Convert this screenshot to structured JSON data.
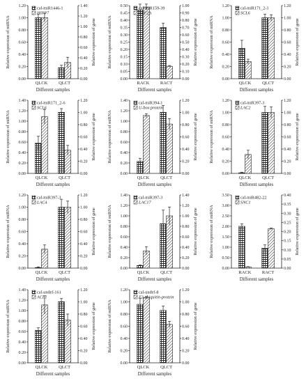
{
  "figure": {
    "colors": {
      "axis": "#222222",
      "bar_fill": "#ffffff",
      "bar_stroke": "#222222",
      "error_bar": "#222222"
    },
    "patterns": [
      "checker",
      "diagonal-hatch"
    ]
  },
  "chart_data": [
    {
      "type": "bar",
      "categories": [
        "QLCK",
        "QLCT"
      ],
      "xlabel": "Different samples",
      "ylabel_left": "Relative expression of miRNA",
      "ylabel_right": "Relative expression of gene",
      "left_ticks": [
        "0.00",
        "0.20",
        "0.40",
        "0.60",
        "0.80",
        "1.00",
        "1.20"
      ],
      "right_ticks": [
        "0.00",
        "0.20",
        "0.40",
        "0.60",
        "0.80",
        "1.00",
        "1.20",
        "1.40"
      ],
      "ylim_left": [
        0,
        1.2
      ],
      "ylim_right": [
        0,
        1.4
      ],
      "series": [
        {
          "name": "cal-miR1446-1",
          "pattern": "checker",
          "axis": "left",
          "values": [
            1.0,
            0.18
          ],
          "errors": [
            0.06,
            0.04
          ]
        },
        {
          "name": "HIPP7",
          "pattern": "diagonal-hatch",
          "axis": "right",
          "values": [
            1.17,
            0.31
          ],
          "errors": [
            0.08,
            0.1
          ]
        }
      ]
    },
    {
      "type": "bar",
      "categories": [
        "RACK",
        "RACT"
      ],
      "xlabel": "Different samples",
      "ylabel_left": "Relative expression of miRNA",
      "ylabel_right": "Relative expression of gene",
      "left_ticks": [
        "0.00",
        "0.05",
        "0.10",
        "0.15",
        "0.20",
        "0.25",
        "0.30",
        "0.35",
        "0.40",
        "0.45",
        "0.50"
      ],
      "right_ticks": [
        "0.00",
        "0.10",
        "0.20",
        "0.30",
        "0.40",
        "0.50",
        "0.60",
        "0.70",
        "0.80",
        "0.90",
        "1.00"
      ],
      "ylim_left": [
        0,
        0.5
      ],
      "ylim_right": [
        0,
        1.0
      ],
      "series": [
        {
          "name": "cal-miR159-39",
          "pattern": "checker",
          "axis": "left",
          "values": [
            0.47,
            0.35
          ],
          "errors": [
            0.04,
            0.03
          ]
        },
        {
          "name": "ARF2A",
          "pattern": "diagonal-hatch",
          "axis": "right",
          "values": [
            0.98,
            0.17
          ],
          "errors": [
            0.04,
            0.01
          ]
        }
      ]
    },
    {
      "type": "bar",
      "categories": [
        "QLCK",
        "QLCT"
      ],
      "xlabel": "Different samples",
      "ylabel_left": "Relative expression of miRNA",
      "ylabel_right": "Relative expression of gene",
      "left_ticks": [
        "0.00",
        "0.20",
        "0.40",
        "0.60",
        "0.80",
        "1.00",
        "1.20"
      ],
      "right_ticks": [
        "0.00",
        "0.20",
        "0.40",
        "0.60",
        "0.80",
        "1.00",
        "1.20"
      ],
      "ylim_left": [
        0,
        1.2
      ],
      "ylim_right": [
        0,
        1.2
      ],
      "series": [
        {
          "name": "cal-miR171_2-1",
          "pattern": "checker",
          "axis": "left",
          "values": [
            0.5,
            1.0
          ],
          "errors": [
            0.13,
            0.06
          ]
        },
        {
          "name": "SCL6",
          "pattern": "diagonal-hatch",
          "axis": "right",
          "values": [
            0.28,
            1.0
          ],
          "errors": [
            0.04,
            0.05
          ]
        }
      ]
    },
    {
      "type": "bar",
      "categories": [
        "QLCK",
        "QLCT"
      ],
      "xlabel": "Different samples",
      "ylabel_left": "Relative expression of miRNA",
      "ylabel_right": "Relative expression of gene",
      "left_ticks": [
        "0.00",
        "0.20",
        "0.40",
        "0.60",
        "0.80",
        "1.00",
        "1.20",
        "1.40"
      ],
      "right_ticks": [
        "0.00",
        "0.20",
        "0.40",
        "0.60",
        "0.80",
        "1.00",
        "1.20"
      ],
      "ylim_left": [
        0,
        1.4
      ],
      "ylim_right": [
        0,
        1.2
      ],
      "series": [
        {
          "name": "cal-miR171_2-6",
          "pattern": "checker",
          "axis": "left",
          "values": [
            0.58,
            1.17
          ],
          "errors": [
            0.13,
            0.07
          ]
        },
        {
          "name": "SCL6",
          "pattern": "diagonal-hatch",
          "axis": "right",
          "values": [
            0.93,
            0.38
          ],
          "errors": [
            0.12,
            0.08
          ]
        }
      ]
    },
    {
      "type": "bar",
      "categories": [
        "QLCK",
        "QLCT"
      ],
      "xlabel": "Different samples",
      "ylabel_left": "Relative expression of miRNA",
      "ylabel_right": "Relative expression of gene",
      "left_ticks": [
        "0.00",
        "0.20",
        "0.40",
        "0.60",
        "0.80",
        "1.00",
        "1.20",
        "1.40"
      ],
      "right_ticks": [
        "0.00",
        "0.20",
        "0.40",
        "0.60",
        "0.80",
        "1.00",
        "1.20"
      ],
      "ylim_left": [
        0,
        1.4
      ],
      "ylim_right": [
        0,
        1.2
      ],
      "series": [
        {
          "name": "cal-miR394-1",
          "pattern": "checker",
          "axis": "left",
          "values": [
            0.23,
            1.17
          ],
          "errors": [
            0.06,
            0.13
          ]
        },
        {
          "name": "U-box protein",
          "pattern": "diagonal-hatch",
          "axis": "right",
          "values": [
            0.95,
            0.81
          ],
          "errors": [
            0.03,
            0.09
          ]
        }
      ]
    },
    {
      "type": "bar",
      "categories": [
        "QLCK",
        "QLCT"
      ],
      "xlabel": "Different samples",
      "ylabel_left": "Relative expression of miRNA",
      "ylabel_right": "Relative expression of gene",
      "left_ticks": [
        "0.00",
        "0.20",
        "0.40",
        "0.60",
        "0.80",
        "1.00",
        "1.20"
      ],
      "right_ticks": [
        "0.00",
        "0.20",
        "0.40",
        "0.60",
        "0.80",
        "1.00",
        "1.20"
      ],
      "ylim_left": [
        0,
        1.2
      ],
      "ylim_right": [
        0,
        1.2
      ],
      "series": [
        {
          "name": "cal-miR397-3",
          "pattern": "checker",
          "axis": "left",
          "values": [
            0.01,
            1.0
          ],
          "errors": [
            0.01,
            0.1
          ]
        },
        {
          "name": "LAC2",
          "pattern": "diagonal-hatch",
          "axis": "right",
          "values": [
            0.31,
            1.0
          ],
          "errors": [
            0.07,
            0.09
          ]
        }
      ]
    },
    {
      "type": "bar",
      "categories": [
        "QLCK",
        "QLCT"
      ],
      "xlabel": "Different samples",
      "ylabel_left": "Relative expression of miRNA",
      "ylabel_right": "Relative expression of gene",
      "left_ticks": [
        "0.00",
        "0.20",
        "0.40",
        "0.60",
        "0.80",
        "1.00",
        "1.20"
      ],
      "right_ticks": [
        "0.00",
        "0.20",
        "0.40",
        "0.60",
        "0.80",
        "1.00",
        "1.20"
      ],
      "ylim_left": [
        0,
        1.2
      ],
      "ylim_right": [
        0,
        1.2
      ],
      "series": [
        {
          "name": "cal-miR397-3",
          "pattern": "checker",
          "axis": "left",
          "values": [
            0.01,
            1.0
          ],
          "errors": [
            0.01,
            0.13
          ]
        },
        {
          "name": "LAC4",
          "pattern": "diagonal-hatch",
          "axis": "right",
          "values": [
            0.31,
            1.0
          ],
          "errors": [
            0.07,
            0.1
          ]
        }
      ]
    },
    {
      "type": "bar",
      "categories": [
        "QLCK",
        "QLCT"
      ],
      "xlabel": "Different samples",
      "ylabel_left": "Relative expression of miRNA",
      "ylabel_right": "Relative expression of gene",
      "left_ticks": [
        "0.00",
        "0.20",
        "0.40",
        "0.60",
        "0.80",
        "1.00",
        "1.20",
        "1.40"
      ],
      "right_ticks": [
        "0.00",
        "0.20",
        "0.40",
        "0.60",
        "0.80",
        "1.00",
        "1.20",
        "1.40"
      ],
      "ylim_left": [
        0,
        1.4
      ],
      "ylim_right": [
        0,
        1.4
      ],
      "series": [
        {
          "name": "cal-miR397-3",
          "pattern": "checker",
          "axis": "left",
          "values": [
            0.05,
            0.85
          ],
          "errors": [
            0.01,
            0.26
          ]
        },
        {
          "name": "LAC17",
          "pattern": "diagonal-hatch",
          "axis": "right",
          "values": [
            0.33,
            1.0
          ],
          "errors": [
            0.08,
            0.17
          ]
        }
      ]
    },
    {
      "type": "bar",
      "categories": [
        "RACK",
        "RACT"
      ],
      "xlabel": "Different samples",
      "ylabel_left": "Relative expression of miRNA",
      "ylabel_right": "Relative expression of gene",
      "left_ticks": [
        "0.00",
        "0.50",
        "1.00",
        "1.50",
        "2.00",
        "2.50",
        "3.00",
        "3.50"
      ],
      "right_ticks": [
        "0.00",
        "0.05",
        "0.10",
        "0.15",
        "0.20",
        "0.25",
        "0.30",
        "0.35",
        "0.40"
      ],
      "ylim_left": [
        0,
        3.5
      ],
      "ylim_right": [
        0,
        0.4
      ],
      "series": [
        {
          "name": "cal-miR482-22",
          "pattern": "checker",
          "axis": "left",
          "values": [
            2.0,
            0.95
          ],
          "errors": [
            0.12,
            0.16
          ]
        },
        {
          "name": "SNC1",
          "pattern": "diagonal-hatch",
          "axis": "right",
          "values": [
            0.006,
            0.215
          ],
          "errors": [
            0.002,
            0.004
          ]
        }
      ]
    },
    {
      "type": "bar",
      "categories": [
        "QLCK",
        "QLCT"
      ],
      "xlabel": "Different samples",
      "ylabel_left": "Relative expression of miRNA",
      "ylabel_right": "Relative expression of gene",
      "left_ticks": [
        "0.00",
        "0.20",
        "0.40",
        "0.60",
        "0.80",
        "1.00",
        "1.20",
        "1.40"
      ],
      "right_ticks": [
        "0.00",
        "0.20",
        "0.40",
        "0.60",
        "0.80",
        "1.00",
        "1.20"
      ],
      "ylim_left": [
        0,
        1.4
      ],
      "ylim_right": [
        0,
        1.2
      ],
      "series": [
        {
          "name": "cal-undef-161",
          "pattern": "checker",
          "axis": "left",
          "values": [
            0.62,
            1.17
          ],
          "errors": [
            0.05,
            0.06
          ]
        },
        {
          "name": "ACL1",
          "pattern": "diagonal-hatch",
          "axis": "right",
          "values": [
            0.95,
            0.7
          ],
          "errors": [
            0.15,
            0.1
          ]
        }
      ]
    },
    {
      "type": "bar",
      "categories": [
        "QLCK",
        "QLCT"
      ],
      "xlabel": "Different samples",
      "ylabel_left": "Relative expression of miRNA",
      "ylabel_right": "Relative expression of gene",
      "left_ticks": [
        "0.00",
        "0.20",
        "0.40",
        "0.60",
        "0.80",
        "1.00",
        "1.20"
      ],
      "right_ticks": [
        "0.00",
        "0.20",
        "0.40",
        "0.60",
        "0.80",
        "1.00",
        "1.20"
      ],
      "ylim_left": [
        0,
        1.2
      ],
      "ylim_right": [
        0,
        1.2
      ],
      "series": [
        {
          "name": "cal-undef-8",
          "pattern": "checker",
          "axis": "left",
          "values": [
            0.96,
            0.86
          ],
          "errors": [
            0.1,
            0.07
          ]
        },
        {
          "name": "E3 ubiquitin-protein",
          "pattern": "diagonal-hatch",
          "axis": "right",
          "values": [
            1.07,
            0.63
          ],
          "errors": [
            0.02,
            0.05
          ]
        }
      ]
    }
  ]
}
